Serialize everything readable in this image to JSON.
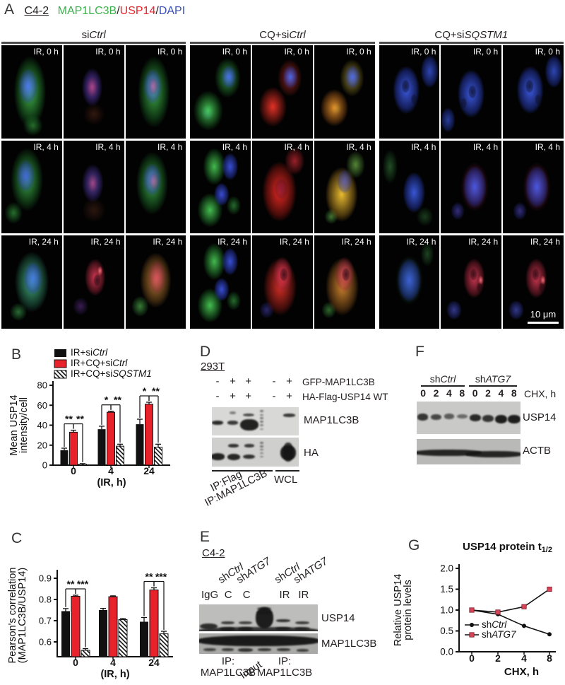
{
  "palette": {
    "green": "#3bb24a",
    "red": "#e8232b",
    "blue": "#3a50b5",
    "bar_red": "#e8222b",
    "line_red": "#d64456",
    "axis": "#111111"
  },
  "panelA": {
    "label": "A",
    "cell_line": "C4-2",
    "stain_title": [
      {
        "text": "MAP1LC3B",
        "color": "#3bb24a"
      },
      {
        "text": "/",
        "color": "#231f20"
      },
      {
        "text": "USP14",
        "color": "#e8232b"
      },
      {
        "text": "/",
        "color": "#231f20"
      },
      {
        "text": "DAPI",
        "color": "#3a50b5"
      }
    ],
    "groups": [
      {
        "parts": [
          [
            "si",
            false
          ],
          [
            "Ctrl",
            true
          ]
        ]
      },
      {
        "parts": [
          [
            "CQ+si",
            false
          ],
          [
            "Ctrl",
            true
          ]
        ]
      },
      {
        "parts": [
          [
            "CQ+si",
            false
          ],
          [
            "SQSTM1",
            true
          ]
        ]
      }
    ],
    "rows": [
      {
        "label": "IR, 0 h",
        "looks": [
          "gbTall",
          "dimRB",
          "mgbTall",
          "gb2",
          "rb",
          "mor",
          "bnuc",
          "bnuc2",
          "bnuc"
        ]
      },
      {
        "label": "IR, 4 h",
        "looks": [
          "gbY",
          "dimRB2",
          "mgbY",
          "gb3",
          "redS",
          "myel",
          "bng",
          "bred",
          "bred"
        ]
      },
      {
        "label": "IR, 24 h",
        "looks": [
          "cyb",
          "rnuc",
          "mgr",
          "gb3",
          "redS2",
          "mor2",
          "bng2",
          "rnuc2",
          "rnuc2"
        ]
      }
    ],
    "scale_bar": "10 μm"
  },
  "panelB": {
    "label": "B",
    "chart": "B"
  },
  "panelC": {
    "label": "C",
    "chart": "C"
  },
  "panelD": {
    "label": "D",
    "cell_line": "293T",
    "construct_rows": [
      {
        "signs": [
          "-",
          "+",
          "+",
          "-",
          "+"
        ],
        "name": "GFP-MAP1LC3B"
      },
      {
        "signs": [
          "-",
          "+",
          "+",
          "-",
          "+"
        ],
        "name": "HA-Flag-USP14 WT"
      }
    ],
    "sign_lanes": [
      6.5,
      24,
      42,
      71.5,
      89
    ],
    "blots": [
      {
        "name": "MAP1LC3B",
        "bg": "#d8d8d6",
        "bands": [
          [
            6.5,
            55,
            13,
            15,
            0.88
          ],
          [
            24,
            55,
            12,
            14,
            0.8
          ],
          [
            24,
            20,
            7,
            9,
            0.45
          ],
          [
            42,
            27,
            13,
            11,
            0.72
          ],
          [
            43,
            62,
            21,
            40,
            0.93
          ],
          [
            57,
            14,
            4,
            6,
            0.5
          ],
          [
            57,
            27,
            4,
            6,
            0.5
          ],
          [
            57,
            39,
            4,
            6,
            0.5
          ],
          [
            57,
            51,
            4,
            6,
            0.5
          ],
          [
            57,
            64,
            4,
            6,
            0.45
          ],
          [
            57,
            77,
            4,
            6,
            0.4
          ],
          [
            89,
            29,
            14,
            11,
            0.82
          ]
        ]
      },
      {
        "name": "HA",
        "bg": "#cfcfcd",
        "bands": [
          [
            7,
            66,
            16,
            24,
            0.92
          ],
          [
            25,
            28,
            12,
            12,
            0.85
          ],
          [
            25,
            66,
            15,
            22,
            0.9
          ],
          [
            43,
            28,
            12,
            11,
            0.8
          ],
          [
            43,
            66,
            14,
            16,
            0.85
          ],
          [
            57,
            18,
            4,
            6,
            0.5
          ],
          [
            57,
            30,
            4,
            6,
            0.5
          ],
          [
            57,
            42,
            4,
            6,
            0.5
          ],
          [
            57,
            54,
            4,
            6,
            0.45
          ],
          [
            57,
            66,
            4,
            6,
            0.4
          ],
          [
            88,
            52,
            18,
            52,
            0.95
          ],
          [
            88,
            50,
            11,
            64,
            0.8
          ]
        ]
      }
    ],
    "bracket_left_labels": [
      "IP:Flag",
      "IP:MAP1LC3B"
    ],
    "bracket_right_label": "WCL"
  },
  "panelE": {
    "label": "E",
    "cell_line": "C4-2",
    "sh_labels": [
      {
        "parts": [
          [
            "sh",
            false
          ],
          [
            "Ctrl",
            true
          ]
        ]
      },
      {
        "parts": [
          [
            "sh",
            false
          ],
          [
            "ATG7",
            true
          ]
        ]
      },
      {
        "parts": [
          [
            "sh",
            false
          ],
          [
            "Ctrl",
            true
          ]
        ]
      },
      {
        "parts": [
          [
            "sh",
            false
          ],
          [
            "ATG7",
            true
          ]
        ]
      }
    ],
    "lane_labels": [
      "IgG",
      "C",
      "C",
      "IR",
      "IR"
    ],
    "lane_pcts": [
      9,
      24.5,
      40,
      72,
      88
    ],
    "sh_lane_pcts": [
      24.5,
      40,
      72,
      88
    ],
    "blots": [
      {
        "name": "USP14",
        "bg": "#bdbdbb",
        "bands": [
          [
            50,
            99,
            104,
            28,
            0.8
          ],
          [
            8,
            82,
            15,
            22,
            0.85
          ],
          [
            24,
            68,
            11,
            11,
            0.78
          ],
          [
            24,
            90,
            13,
            14,
            0.8
          ],
          [
            39,
            68,
            11,
            11,
            0.75
          ],
          [
            39,
            90,
            13,
            14,
            0.8
          ],
          [
            55,
            50,
            15,
            80,
            0.95
          ],
          [
            55,
            16,
            12,
            10,
            0.6
          ],
          [
            55,
            30,
            13,
            10,
            0.75
          ],
          [
            71,
            60,
            12,
            10,
            0.85
          ],
          [
            71,
            90,
            13,
            12,
            0.8
          ],
          [
            87,
            68,
            12,
            11,
            0.78
          ],
          [
            87,
            90,
            13,
            12,
            0.8
          ]
        ]
      },
      {
        "name": "MAP1LC3B",
        "bg": "#a9a9a7",
        "bands": [
          [
            50,
            36,
            104,
            50,
            0.96
          ],
          [
            9,
            78,
            11,
            14,
            0.7
          ],
          [
            24,
            80,
            10,
            12,
            0.75
          ],
          [
            39,
            82,
            12,
            16,
            0.8
          ],
          [
            55,
            80,
            11,
            12,
            0.78
          ],
          [
            71,
            80,
            11,
            12,
            0.78
          ],
          [
            87,
            82,
            10,
            12,
            0.72
          ]
        ]
      }
    ],
    "bottom_left": {
      "line1": "IP:",
      "line2": "MAP1LC3B"
    },
    "bottom_mid": "Input",
    "bottom_right": {
      "line1": "IP:",
      "line2": "MAP1LC3B"
    }
  },
  "panelF": {
    "label": "F",
    "groups": [
      {
        "parts": [
          [
            "sh",
            false
          ],
          [
            "Ctrl",
            true
          ]
        ]
      },
      {
        "parts": [
          [
            "sh",
            false
          ],
          [
            "ATG7",
            true
          ]
        ]
      }
    ],
    "timepoints": [
      "0",
      "2",
      "4",
      "8",
      "0",
      "2",
      "4",
      "8"
    ],
    "lane_pcts": [
      6.25,
      18.75,
      31.25,
      43.75,
      56.25,
      68.75,
      81.25,
      93.75
    ],
    "time_unit": "CHX, h",
    "blots": [
      {
        "name": "USP14",
        "bg": "#c9c9c7",
        "bands": [
          [
            6,
            48,
            10,
            20,
            0.82
          ],
          [
            18.75,
            48,
            10,
            18,
            0.72
          ],
          [
            31.25,
            46,
            10,
            16,
            0.6
          ],
          [
            43.75,
            46,
            10,
            14,
            0.52
          ],
          [
            56.25,
            50,
            11,
            22,
            0.88
          ],
          [
            68.75,
            52,
            11,
            22,
            0.82
          ],
          [
            81.25,
            55,
            12,
            26,
            0.95
          ],
          [
            93.75,
            55,
            12,
            26,
            0.95
          ]
        ]
      },
      {
        "name": "ACTB",
        "bg": "#b9b9b7",
        "bands": [
          [
            30,
            55,
            65,
            24,
            0.9
          ],
          [
            75,
            60,
            56,
            24,
            0.9
          ]
        ]
      }
    ]
  },
  "panelG": {
    "label": "G",
    "chart": "G"
  },
  "chart_data": [
    {
      "id": "B",
      "type": "bar",
      "categories": [
        "0",
        "4",
        "24"
      ],
      "xlabel": "(IR, h)",
      "ylabel": "Mean USP14\nintensity/cell",
      "ylim": [
        0,
        80
      ],
      "yticks": [
        0,
        20,
        40,
        60,
        80
      ],
      "ytick_labels": [
        "0",
        "20",
        "40",
        "60",
        "80"
      ],
      "legend_position": "top",
      "series": [
        {
          "name": "IR+siCtrl",
          "name_parts": [
            [
              "IR+si",
              false
            ],
            [
              "Ctrl",
              true
            ]
          ],
          "style": "black",
          "values": [
            15,
            36,
            41
          ],
          "errors": [
            2,
            3,
            5
          ]
        },
        {
          "name": "IR+CQ+siCtrl",
          "name_parts": [
            [
              "IR+CQ+si",
              false
            ],
            [
              "Ctrl",
              true
            ]
          ],
          "style": "red",
          "values": [
            33,
            53,
            61
          ],
          "errors": [
            2,
            1,
            2
          ]
        },
        {
          "name": "IR+CQ+siSQSTM1",
          "name_parts": [
            [
              "IR+CQ+si",
              false
            ],
            [
              "SQSTM1",
              true
            ]
          ],
          "style": "hatched",
          "values": [
            1,
            19,
            18
          ],
          "errors": [
            0.5,
            2,
            3
          ]
        }
      ],
      "significance": [
        {
          "group": 0,
          "bars": [
            0,
            1
          ],
          "label": "**"
        },
        {
          "group": 0,
          "bars": [
            1,
            2
          ],
          "label": "**"
        },
        {
          "group": 1,
          "bars": [
            0,
            1
          ],
          "label": "*"
        },
        {
          "group": 1,
          "bars": [
            1,
            2
          ],
          "label": "**"
        },
        {
          "group": 2,
          "bars": [
            0,
            1
          ],
          "label": "*"
        },
        {
          "group": 2,
          "bars": [
            1,
            2
          ],
          "label": "**"
        }
      ]
    },
    {
      "id": "C",
      "type": "bar",
      "categories": [
        "0",
        "4",
        "24"
      ],
      "xlabel": "(IR, h)",
      "ylabel": "Pearson's correlation\n(MAP1LC3B/USP14)",
      "ylim": [
        0.53,
        0.92
      ],
      "yticks": [
        0.6,
        0.7,
        0.8,
        0.9
      ],
      "ytick_labels": [
        "0.6",
        "0.7",
        "0.8",
        "0.9"
      ],
      "legend_position": "none",
      "series": [
        {
          "name": "IR+siCtrl",
          "name_parts": [
            [
              "IR+si",
              false
            ],
            [
              "Ctrl",
              true
            ]
          ],
          "style": "black",
          "values": [
            0.745,
            0.75,
            0.695
          ],
          "errors": [
            0.012,
            0.008,
            0.02
          ]
        },
        {
          "name": "IR+CQ+siCtrl",
          "name_parts": [
            [
              "IR+CQ+si",
              false
            ],
            [
              "Ctrl",
              true
            ]
          ],
          "style": "red",
          "values": [
            0.815,
            0.813,
            0.845
          ],
          "errors": [
            0.005,
            0.004,
            0.01
          ]
        },
        {
          "name": "IR+CQ+siSQSTM1",
          "name_parts": [
            [
              "IR+CQ+si",
              false
            ],
            [
              "SQSTM1",
              true
            ]
          ],
          "style": "hatched",
          "values": [
            0.56,
            0.705,
            0.638
          ],
          "errors": [
            0.008,
            0.005,
            0.012
          ]
        }
      ],
      "significance": [
        {
          "group": 0,
          "bars": [
            0,
            1
          ],
          "label": "**"
        },
        {
          "group": 0,
          "bars": [
            1,
            2
          ],
          "label": "***"
        },
        {
          "group": 2,
          "bars": [
            0,
            1
          ],
          "label": "**"
        },
        {
          "group": 2,
          "bars": [
            1,
            2
          ],
          "label": "***"
        }
      ]
    },
    {
      "id": "G",
      "type": "line",
      "title": "USP14 protein t",
      "title_sub": "1/2",
      "x_categories": [
        "0",
        "2",
        "4",
        "8"
      ],
      "xlabel": "CHX, h",
      "ylabel": "Relative USP14\nprotein levels",
      "ylim": [
        0,
        2
      ],
      "yticks": [
        0,
        0.5,
        1,
        1.5,
        2
      ],
      "ytick_labels": [
        "0.0",
        "0.5",
        "1.0",
        "1.5",
        "2.0"
      ],
      "legend_position": "inside-bottom-left",
      "series": [
        {
          "name": "shCtrl",
          "name_parts": [
            [
              "sh",
              false
            ],
            [
              "Ctrl",
              true
            ]
          ],
          "color": "#111111",
          "marker": "circle",
          "values": [
            1.0,
            0.9,
            0.62,
            0.42
          ]
        },
        {
          "name": "shATG7",
          "name_parts": [
            [
              "sh",
              false
            ],
            [
              "ATG7",
              true
            ]
          ],
          "color": "#d64456",
          "marker": "square",
          "values": [
            1.0,
            0.95,
            1.08,
            1.5
          ]
        }
      ]
    }
  ]
}
